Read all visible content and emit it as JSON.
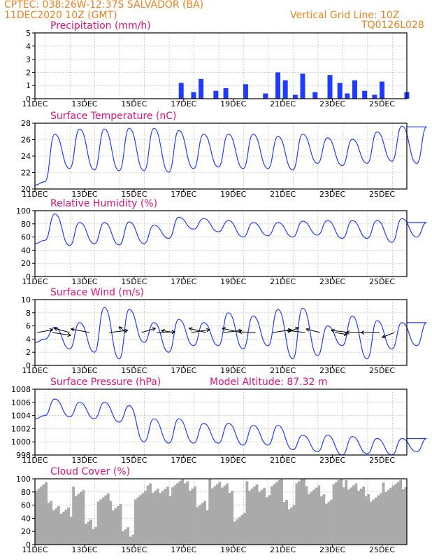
{
  "header": {
    "line1_left": "CPTEC:   038:26W-12:37S   SALVADOR (BA)",
    "line2_left": "11DEC2020  10Z  (GMT)",
    "line1_right": "Vertical Grid Line: 10Z",
    "line2_right": "TQ0126L028",
    "model_altitude": "Model Altitude: 87.32  m"
  },
  "colors": {
    "header": "#e8821e",
    "title": "#e0117a",
    "series": "#1e3cff",
    "bars": "#1e3cff",
    "cloud": "#aaaaaa",
    "arrow": "#000000"
  },
  "x_ticks": [
    "11DEC",
    "13DEC",
    "15DEC",
    "17DEC",
    "19DEC",
    "21DEC",
    "23DEC",
    "25DEC"
  ],
  "chart_data": [
    {
      "type": "bar",
      "title": "Precipitation  (mm/h)",
      "ylim": [
        0,
        5
      ],
      "yticks": [
        "0",
        "1",
        "2",
        "3",
        "4",
        "5"
      ],
      "x_range_days": [
        11.0,
        26.0
      ],
      "days": [
        16.8,
        17.3,
        17.6,
        18.2,
        18.6,
        19.4,
        20.2,
        20.7,
        21.0,
        21.4,
        21.7,
        22.2,
        22.8,
        23.2,
        23.5,
        23.8,
        24.2,
        24.6,
        24.9,
        25.9
      ],
      "values": [
        1.2,
        0.5,
        1.5,
        0.6,
        0.8,
        1.1,
        0.4,
        2.0,
        1.4,
        0.3,
        1.9,
        0.5,
        1.8,
        1.2,
        0.4,
        1.4,
        0.6,
        0.3,
        1.3,
        0.5
      ],
      "grid": true
    },
    {
      "type": "line",
      "title": "Surface Temperature  (nC)",
      "ylim": [
        20,
        29
      ],
      "yticks": [
        "20",
        "22",
        "24",
        "26",
        "28"
      ],
      "x_range_days": [
        11.0,
        26.0
      ],
      "min": [
        21.0,
        22.8,
        22.6,
        22.5,
        22.5,
        22.3,
        22.8,
        23.0,
        22.8,
        22.8,
        22.6,
        23.5,
        23.2,
        23.5,
        23.8,
        23.5
      ],
      "max": [
        27.5,
        28.2,
        28.2,
        28.3,
        28.3,
        28.0,
        27.5,
        27.5,
        27.5,
        27.2,
        27.5,
        27.0,
        26.8,
        27.8,
        28.6,
        28.5
      ],
      "grid": true
    },
    {
      "type": "line",
      "title": "Relative Humidity  (%)",
      "ylim": [
        0,
        100
      ],
      "yticks": [
        "0",
        "20",
        "40",
        "60",
        "80",
        "100"
      ],
      "x_range_days": [
        11.0,
        26.0
      ],
      "min": [
        55,
        47,
        50,
        48,
        50,
        58,
        72,
        68,
        60,
        62,
        60,
        63,
        58,
        58,
        52,
        60
      ],
      "max": [
        95,
        82,
        82,
        83,
        78,
        90,
        88,
        85,
        82,
        82,
        84,
        85,
        85,
        85,
        88,
        82
      ],
      "grid": true
    },
    {
      "type": "line",
      "title": "Surface Wind  (m/s)",
      "ylim": [
        0,
        10
      ],
      "yticks": [
        "0",
        "2",
        "4",
        "6",
        "8",
        "10"
      ],
      "x_range_days": [
        11.0,
        26.0
      ],
      "min": [
        4.0,
        2.5,
        2.0,
        1.0,
        3.5,
        2.0,
        3.0,
        3.0,
        2.5,
        3.0,
        1.0,
        1.5,
        3.0,
        1.0,
        2.5,
        3.0
      ],
      "max": [
        5.8,
        6.5,
        8.8,
        8.5,
        6.5,
        7.0,
        6.5,
        8.0,
        7.5,
        8.5,
        8.7,
        6.0,
        7.5,
        6.8,
        6.5,
        6.5
      ],
      "arrows": [
        {
          "day": 11.1,
          "u": 1.0,
          "v": 0.4
        },
        {
          "day": 11.7,
          "u": 1.2,
          "v": -0.4
        },
        {
          "day": 12.4,
          "u": -1.0,
          "v": 0.6
        },
        {
          "day": 13.2,
          "u": -1.2,
          "v": 0.5
        },
        {
          "day": 14.0,
          "u": 1.2,
          "v": 0.3
        },
        {
          "day": 14.7,
          "u": -0.5,
          "v": 0.8
        },
        {
          "day": 15.3,
          "u": 0.9,
          "v": 0.6
        },
        {
          "day": 15.9,
          "u": 1.2,
          "v": 0.1
        },
        {
          "day": 16.6,
          "u": -0.8,
          "v": 0.3
        },
        {
          "day": 17.3,
          "u": 1.2,
          "v": 0.4
        },
        {
          "day": 17.9,
          "u": -1.1,
          "v": 0.6
        },
        {
          "day": 18.6,
          "u": 1.2,
          "v": 0.3
        },
        {
          "day": 19.3,
          "u": -1.2,
          "v": 0.6
        },
        {
          "day": 19.9,
          "u": -1.1,
          "v": 0.1
        },
        {
          "day": 20.6,
          "u": 1.2,
          "v": 0.4
        },
        {
          "day": 21.2,
          "u": 0.7,
          "v": 0.7
        },
        {
          "day": 21.9,
          "u": -1.2,
          "v": 0.3
        },
        {
          "day": 22.5,
          "u": -0.9,
          "v": 0.5
        },
        {
          "day": 23.1,
          "u": 0.8,
          "v": -0.3
        },
        {
          "day": 23.7,
          "u": -1.2,
          "v": 0.3
        },
        {
          "day": 24.3,
          "u": -1.2,
          "v": 0.0
        },
        {
          "day": 24.9,
          "u": -1.2,
          "v": 0.0
        },
        {
          "day": 25.5,
          "u": -0.8,
          "v": -0.7
        }
      ],
      "grid": true
    },
    {
      "type": "line",
      "title": "Surface Pressure  (hPa)",
      "ylim": [
        998,
        1008
      ],
      "yticks": [
        "998",
        "1000",
        "1002",
        "1004",
        "1006",
        "1008"
      ],
      "x_range_days": [
        11.0,
        26.0
      ],
      "min": [
        1004.0,
        1003.8,
        1003.5,
        1003.0,
        1000.0,
        999.8,
        999.8,
        999.8,
        999.5,
        999.5,
        998.8,
        998.5,
        998.0,
        998.2,
        998.0,
        998.5
      ],
      "max": [
        1006.5,
        1006.0,
        1006.0,
        1005.5,
        1003.5,
        1003.5,
        1002.8,
        1002.8,
        1002.5,
        1002.5,
        1001.0,
        1001.0,
        1000.8,
        1000.5,
        1000.5,
        1000.5
      ],
      "grid": true
    },
    {
      "type": "area",
      "title": "Cloud Cover  (%)",
      "ylim": [
        0,
        100
      ],
      "yticks": [
        "0",
        "20",
        "40",
        "60",
        "80",
        "100"
      ],
      "x_range_days": [
        11.0,
        26.0
      ],
      "levels": [
        {
          "from": 11.0,
          "to": 11.5,
          "value": 90
        },
        {
          "from": 11.5,
          "to": 12.0,
          "value": 60
        },
        {
          "from": 12.0,
          "to": 12.5,
          "value": 50
        },
        {
          "from": 12.5,
          "to": 13.0,
          "value": 80
        },
        {
          "from": 13.0,
          "to": 13.5,
          "value": 30
        },
        {
          "from": 13.5,
          "to": 14.0,
          "value": 70
        },
        {
          "from": 14.0,
          "to": 14.5,
          "value": 60
        },
        {
          "from": 14.5,
          "to": 15.0,
          "value": 20
        },
        {
          "from": 15.0,
          "to": 15.5,
          "value": 75
        },
        {
          "from": 15.5,
          "to": 16.0,
          "value": 85
        },
        {
          "from": 16.0,
          "to": 16.5,
          "value": 80
        },
        {
          "from": 16.5,
          "to": 17.0,
          "value": 95
        },
        {
          "from": 17.0,
          "to": 17.5,
          "value": 90
        },
        {
          "from": 17.5,
          "to": 18.0,
          "value": 60
        },
        {
          "from": 18.0,
          "to": 18.5,
          "value": 92
        },
        {
          "from": 18.5,
          "to": 19.0,
          "value": 85
        },
        {
          "from": 19.0,
          "to": 19.5,
          "value": 40
        },
        {
          "from": 19.5,
          "to": 20.0,
          "value": 90
        },
        {
          "from": 20.0,
          "to": 20.5,
          "value": 80
        },
        {
          "from": 20.5,
          "to": 21.0,
          "value": 95
        },
        {
          "from": 21.0,
          "to": 21.5,
          "value": 60
        },
        {
          "from": 21.5,
          "to": 22.0,
          "value": 95
        },
        {
          "from": 22.0,
          "to": 22.5,
          "value": 85
        },
        {
          "from": 22.5,
          "to": 23.0,
          "value": 70
        },
        {
          "from": 23.0,
          "to": 23.5,
          "value": 95
        },
        {
          "from": 23.5,
          "to": 24.0,
          "value": 90
        },
        {
          "from": 24.0,
          "to": 24.5,
          "value": 80
        },
        {
          "from": 24.5,
          "to": 25.0,
          "value": 70
        },
        {
          "from": 25.0,
          "to": 25.5,
          "value": 88
        },
        {
          "from": 25.5,
          "to": 26.0,
          "value": 92
        }
      ],
      "grid": true
    }
  ]
}
